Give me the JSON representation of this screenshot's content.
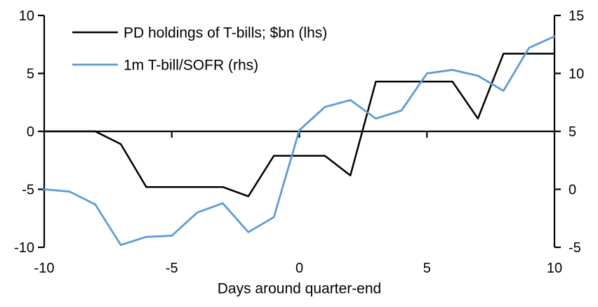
{
  "chart_data": {
    "type": "line",
    "title": "",
    "xlabel": "Days around quarter-end",
    "ylabel_left": "",
    "ylabel_right": "",
    "x": [
      -10,
      -9,
      -8,
      -7,
      -6,
      -5,
      -4,
      -3,
      -2,
      -1,
      0,
      1,
      2,
      3,
      4,
      5,
      6,
      7,
      8,
      9,
      10
    ],
    "series": [
      {
        "name": "PD holdings of T-bills; $bn (lhs)",
        "axis": "left",
        "color": "#000000",
        "stroke_width": 2.5,
        "values": [
          0,
          0,
          0,
          -1.1,
          -4.8,
          -4.8,
          -4.8,
          -4.8,
          -5.6,
          -2.1,
          -2.1,
          -2.1,
          -3.8,
          4.3,
          4.3,
          4.3,
          4.3,
          1.1,
          6.7,
          6.7,
          6.7
        ]
      },
      {
        "name": "1m T-bill/SOFR (rhs)",
        "axis": "right",
        "color": "#5B9BD5",
        "stroke_width": 2.75,
        "values": [
          0,
          -0.2,
          -1.3,
          -4.8,
          -4.1,
          -4.0,
          -2.0,
          -1.2,
          -3.7,
          -2.4,
          5.1,
          7.1,
          7.7,
          6.1,
          6.8,
          10.0,
          10.3,
          9.8,
          8.5,
          12.2,
          13.2
        ]
      }
    ],
    "left_axis": {
      "min": -10,
      "max": 10,
      "ticks": [
        10,
        5,
        0,
        -5,
        -10
      ]
    },
    "right_axis": {
      "min": -5,
      "max": 15,
      "ticks": [
        15,
        10,
        5,
        0,
        -5
      ]
    },
    "x_ticks": [
      -10,
      -5,
      0,
      5,
      10
    ],
    "axis_color": "#000000",
    "background": "#ffffff",
    "grid": false,
    "legend_position": "top-left-inside"
  }
}
